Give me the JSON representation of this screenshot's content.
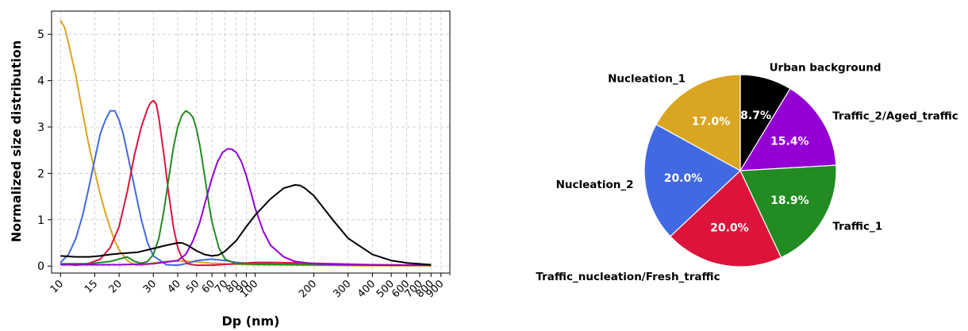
{
  "chart_data": [
    {
      "type": "line",
      "xlabel": "Dp (nm)",
      "ylabel": "Normalized size distribution",
      "x_scale": "log",
      "xlim": [
        9,
        1000
      ],
      "ylim": [
        -0.15,
        5.5
      ],
      "grid": true,
      "x_ticks": [
        10,
        15,
        20,
        30,
        40,
        50,
        60,
        70,
        80,
        90,
        100,
        200,
        300,
        400,
        500,
        600,
        700,
        800,
        900
      ],
      "y_ticks": [
        0,
        1,
        2,
        3,
        4,
        5
      ],
      "series": [
        {
          "color": "#daa520",
          "x": [
            10,
            10.5,
            11,
            12,
            13,
            14,
            15,
            16,
            17,
            18,
            19,
            20,
            22,
            24,
            26,
            28,
            30,
            35,
            40,
            45,
            50,
            60,
            80,
            100,
            200,
            400,
            800
          ],
          "y": [
            5.3,
            5.15,
            4.8,
            4.1,
            3.3,
            2.6,
            2.05,
            1.55,
            1.15,
            0.82,
            0.55,
            0.35,
            0.12,
            0.03,
            0.02,
            0.04,
            0.07,
            0.1,
            0.11,
            0.1,
            0.09,
            0.06,
            0.04,
            0.03,
            0.02,
            0.01,
            0.01
          ]
        },
        {
          "color": "#4169e1",
          "x": [
            10,
            11,
            12,
            13,
            14,
            15,
            16,
            17,
            18,
            19,
            20,
            21,
            22,
            24,
            26,
            28,
            30,
            35,
            40,
            45,
            50,
            60,
            70,
            80,
            100,
            200,
            800
          ],
          "y": [
            0.08,
            0.25,
            0.6,
            1.1,
            1.7,
            2.3,
            2.85,
            3.15,
            3.35,
            3.35,
            3.15,
            2.85,
            2.45,
            1.7,
            1.0,
            0.5,
            0.22,
            0.03,
            0.02,
            0.06,
            0.12,
            0.15,
            0.12,
            0.08,
            0.05,
            0.03,
            0.02
          ]
        },
        {
          "color": "#dc143c",
          "x": [
            10,
            12,
            14,
            16,
            18,
            20,
            22,
            24,
            26,
            28,
            29,
            30,
            31,
            32,
            34,
            36,
            38,
            40,
            42,
            45,
            50,
            60,
            80,
            100,
            120,
            200,
            400,
            800
          ],
          "y": [
            0.05,
            0.02,
            0.06,
            0.15,
            0.4,
            0.85,
            1.6,
            2.4,
            3.0,
            3.4,
            3.52,
            3.57,
            3.5,
            3.2,
            2.4,
            1.55,
            0.85,
            0.4,
            0.18,
            0.05,
            0.02,
            0.02,
            0.05,
            0.08,
            0.08,
            0.06,
            0.03,
            0.02
          ]
        },
        {
          "color": "#228b22",
          "x": [
            10,
            14,
            18,
            22,
            24,
            26,
            28,
            30,
            32,
            34,
            36,
            38,
            40,
            42,
            44,
            46,
            48,
            50,
            52,
            55,
            58,
            60,
            65,
            70,
            80,
            100,
            200,
            800
          ],
          "y": [
            0.05,
            0.05,
            0.1,
            0.2,
            0.1,
            0.06,
            0.1,
            0.25,
            0.6,
            1.2,
            1.9,
            2.55,
            3.0,
            3.25,
            3.35,
            3.3,
            3.2,
            2.95,
            2.6,
            1.95,
            1.3,
            0.95,
            0.4,
            0.15,
            0.05,
            0.04,
            0.03,
            0.02
          ]
        },
        {
          "color": "#9400d3",
          "x": [
            10,
            20,
            30,
            40,
            44,
            48,
            52,
            56,
            60,
            64,
            68,
            72,
            76,
            80,
            85,
            90,
            95,
            100,
            110,
            120,
            140,
            160,
            200,
            300,
            500,
            800
          ],
          "y": [
            0.03,
            0.03,
            0.05,
            0.12,
            0.25,
            0.55,
            0.95,
            1.45,
            1.9,
            2.25,
            2.45,
            2.53,
            2.52,
            2.45,
            2.25,
            1.95,
            1.6,
            1.25,
            0.75,
            0.45,
            0.2,
            0.1,
            0.05,
            0.03,
            0.02,
            0.02
          ]
        },
        {
          "color": "#000000",
          "x": [
            10,
            12,
            14,
            16,
            18,
            20,
            25,
            30,
            35,
            40,
            42,
            45,
            50,
            55,
            60,
            65,
            70,
            80,
            90,
            100,
            120,
            140,
            160,
            170,
            180,
            200,
            250,
            300,
            400,
            500,
            600,
            800
          ],
          "y": [
            0.22,
            0.2,
            0.2,
            0.22,
            0.25,
            0.27,
            0.3,
            0.38,
            0.45,
            0.5,
            0.5,
            0.45,
            0.33,
            0.25,
            0.22,
            0.24,
            0.32,
            0.55,
            0.85,
            1.1,
            1.45,
            1.68,
            1.75,
            1.74,
            1.68,
            1.52,
            1.0,
            0.6,
            0.25,
            0.12,
            0.07,
            0.03
          ]
        }
      ]
    },
    {
      "type": "pie",
      "slices": [
        {
          "label": "Urban background",
          "value": 8.7,
          "pct_label": "8.7%",
          "color": "#000000"
        },
        {
          "label": "Traffic_2/Aged_traffic",
          "value": 15.4,
          "pct_label": "15.4%",
          "color": "#9400d3"
        },
        {
          "label": "Traffic_1",
          "value": 18.9,
          "pct_label": "18.9%",
          "color": "#228b22"
        },
        {
          "label": "Traffic_nucleation/Fresh_traffic",
          "value": 20.0,
          "pct_label": "20.0%",
          "color": "#dc143c"
        },
        {
          "label": "Nucleation_2",
          "value": 20.0,
          "pct_label": "20.0%",
          "color": "#4169e1"
        },
        {
          "label": "Nucleation_1",
          "value": 17.0,
          "pct_label": "17.0%",
          "color": "#daa520"
        }
      ]
    }
  ]
}
